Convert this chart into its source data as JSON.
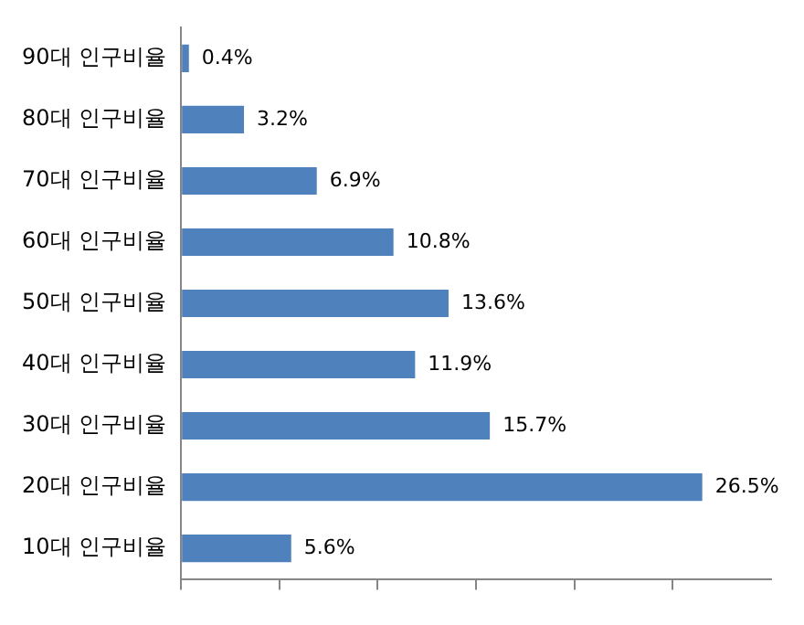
{
  "chart_data": {
    "type": "bar",
    "orientation": "horizontal",
    "categories": [
      "90대 인구비율",
      "80대 인구비율",
      "70대 인구비율",
      "60대 인구비율",
      "50대 인구비율",
      "40대 인구비율",
      "30대 인구비율",
      "20대 인구비율",
      "10대 인구비율"
    ],
    "values": [
      0.4,
      3.2,
      6.9,
      10.8,
      13.6,
      11.9,
      15.7,
      26.5,
      5.6
    ],
    "value_labels": [
      "0.4%",
      "3.2%",
      "6.9%",
      "10.8%",
      "13.6%",
      "11.9%",
      "15.7%",
      "26.5%",
      "5.6%"
    ],
    "color": "#4f81bd",
    "xlim": [
      0,
      30
    ],
    "xticks": [
      {
        "value": 0,
        "label": null
      },
      {
        "value": 5,
        "label": null
      },
      {
        "value": 10,
        "label": null
      },
      {
        "value": 15,
        "label": null
      },
      {
        "value": 20,
        "label": null
      },
      {
        "value": 25,
        "label": null
      }
    ],
    "grid": false,
    "legend": false
  }
}
